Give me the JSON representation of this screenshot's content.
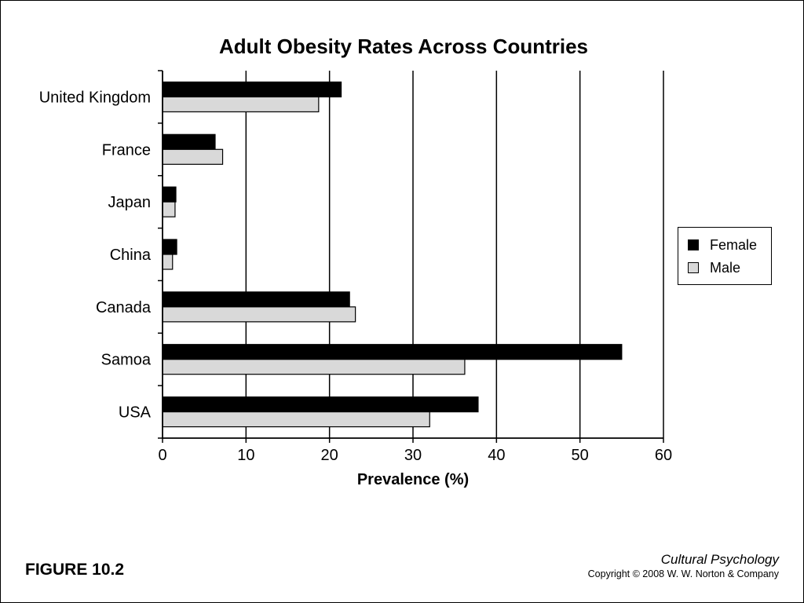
{
  "figure_label": "FIGURE 10.2",
  "book_title": "Cultural Psychology",
  "copyright": "Copyright © 2008 W. W. Norton & Company",
  "colors": {
    "female": "#000000",
    "male": "#d9d9d9",
    "grid": "#000000"
  },
  "chart_data": {
    "type": "bar",
    "orientation": "horizontal",
    "title": "Adult Obesity Rates Across Countries",
    "xlabel": "Prevalence (%)",
    "ylabel": "",
    "xlim": [
      0,
      60
    ],
    "xticks": [
      0,
      10,
      20,
      30,
      40,
      50,
      60
    ],
    "grid": "vertical",
    "legend_position": "right",
    "categories": [
      "United Kingdom",
      "France",
      "Japan",
      "China",
      "Canada",
      "Samoa",
      "USA"
    ],
    "series": [
      {
        "name": "Female",
        "values": [
          21.4,
          6.3,
          1.6,
          1.7,
          22.4,
          55.0,
          37.8
        ]
      },
      {
        "name": "Male",
        "values": [
          18.7,
          7.2,
          1.5,
          1.2,
          23.1,
          36.2,
          32.0
        ]
      }
    ]
  }
}
